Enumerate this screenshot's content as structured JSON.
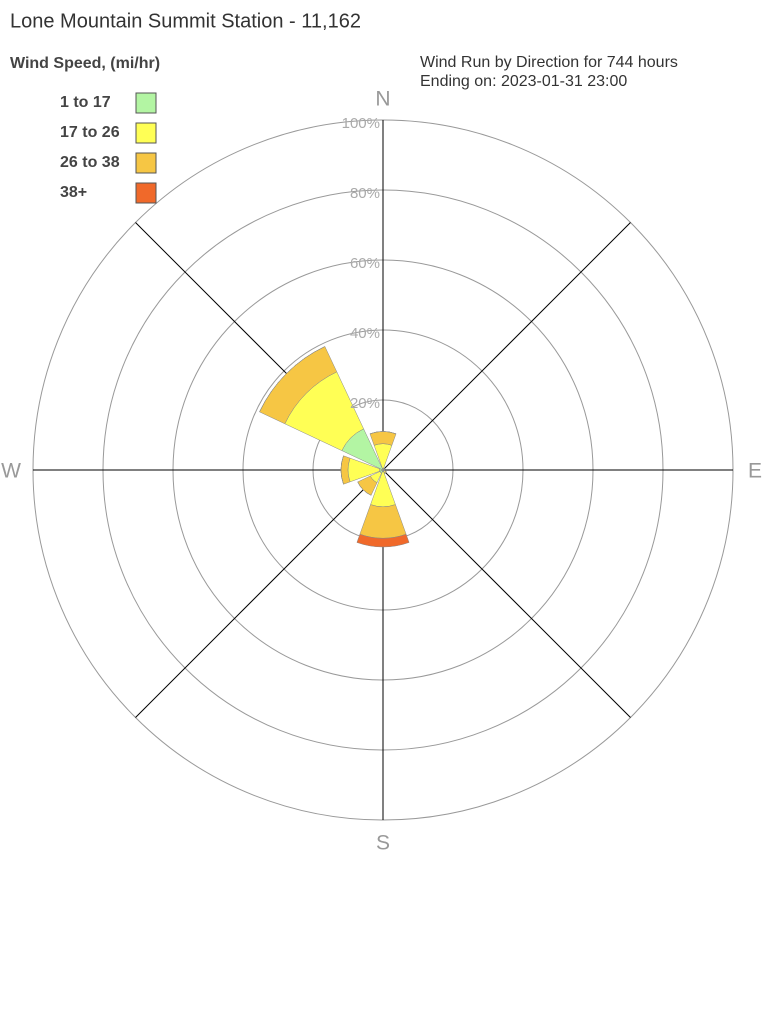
{
  "chart_data": {
    "type": "windrose",
    "title": "Lone Mountain Summit Station - 11,162",
    "annotations": [
      "Wind Run by Direction for 744 hours",
      "Ending on: 2023-01-31 23:00"
    ],
    "legend_title": "Wind Speed, (mi/hr)",
    "categories": [
      "N",
      null,
      "E",
      null,
      "S",
      null,
      "W",
      null
    ],
    "series": [
      {
        "name": "1 to 17",
        "color": "#b3f5a3",
        "values": [
          0.5,
          0.3,
          0.3,
          0.3,
          0.5,
          1,
          1,
          13
        ]
      },
      {
        "name": "17 to 26",
        "color": "#ffff55",
        "values": [
          7,
          0.3,
          0.2,
          0.5,
          10,
          3,
          9,
          18
        ]
      },
      {
        "name": "26 to 38",
        "color": "#f6c644",
        "values": [
          3.5,
          0,
          0,
          0.3,
          9,
          4,
          2,
          8
        ]
      },
      {
        "name": "38+",
        "color": "#f0692a",
        "values": [
          0,
          0,
          0,
          0,
          2.5,
          0,
          0,
          0
        ]
      }
    ],
    "rlim": [
      0,
      100
    ],
    "rticks": [
      {
        "value": 20,
        "label": "20%"
      },
      {
        "value": 40,
        "label": "40%"
      },
      {
        "value": 60,
        "label": "60%"
      },
      {
        "value": 80,
        "label": "80%"
      },
      {
        "value": 100,
        "label": "100%"
      }
    ],
    "grid": true
  }
}
